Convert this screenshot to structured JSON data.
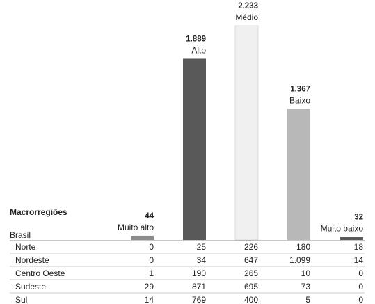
{
  "chart_data": {
    "type": "bar",
    "table_title": "Macrorregiões",
    "total_label": "Brasil",
    "categories": [
      "Muito alto",
      "Alto",
      "Médio",
      "Baixo",
      "Muito baixo"
    ],
    "value_labels": [
      "44",
      "1.889",
      "2.233",
      "1.367",
      "32"
    ],
    "values": [
      44,
      1889,
      2233,
      1367,
      32
    ],
    "ylim": [
      0,
      2233
    ],
    "colors": [
      "#8c8c8c",
      "#595959",
      "#f0f0f0",
      "#b8b8b8",
      "#595959"
    ],
    "rows": [
      {
        "region": "Norte",
        "values": [
          "0",
          "25",
          "226",
          "180",
          "18"
        ]
      },
      {
        "region": "Nordeste",
        "values": [
          "0",
          "34",
          "647",
          "1.099",
          "14"
        ]
      },
      {
        "region": "Centro Oeste",
        "values": [
          "1",
          "190",
          "265",
          "10",
          "0"
        ]
      },
      {
        "region": "Sudeste",
        "values": [
          "29",
          "871",
          "695",
          "73",
          "0"
        ]
      },
      {
        "region": "Sul",
        "values": [
          "14",
          "769",
          "400",
          "5",
          "0"
        ]
      }
    ]
  }
}
